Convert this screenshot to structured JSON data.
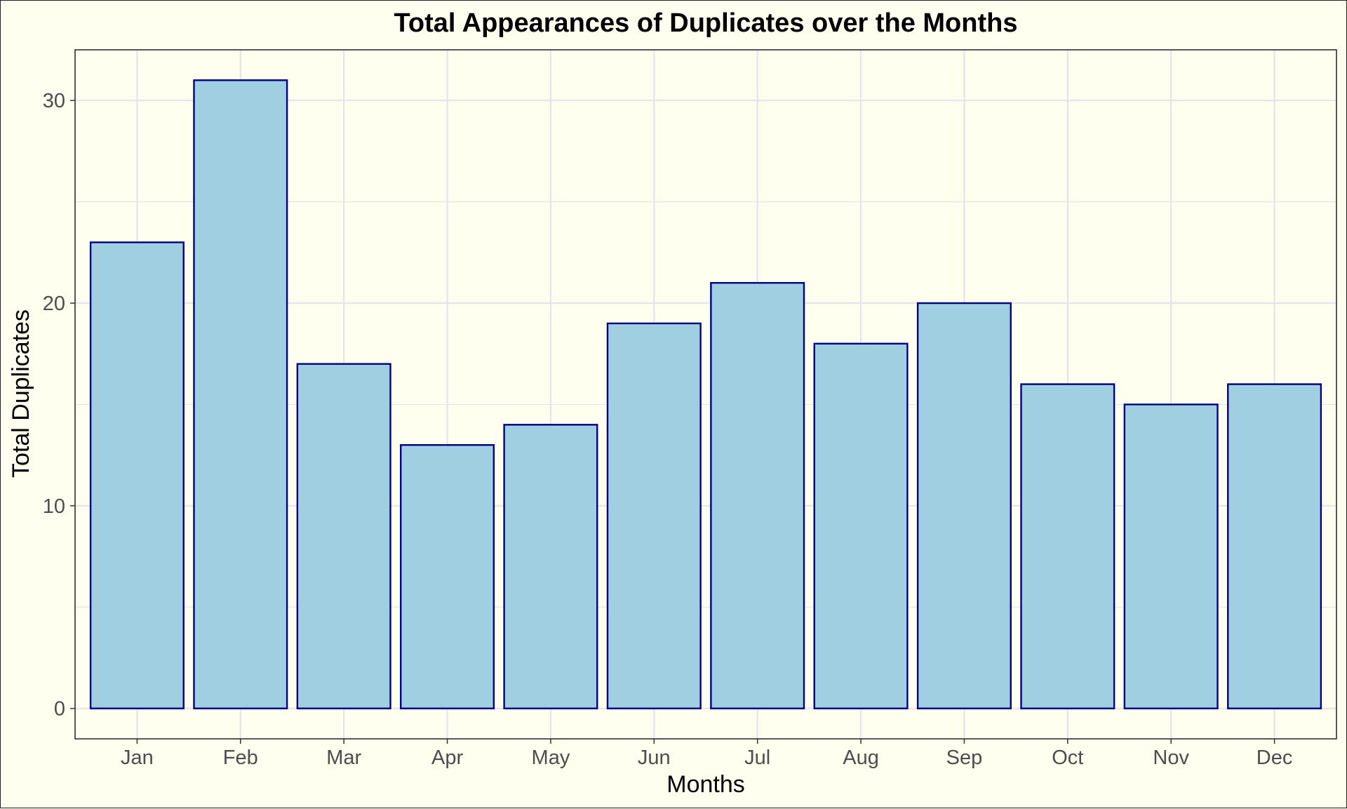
{
  "chart_data": {
    "type": "bar",
    "title": "Total Appearances of Duplicates over the Months",
    "xlabel": "Months",
    "ylabel": "Total Duplicates",
    "categories": [
      "Jan",
      "Feb",
      "Mar",
      "Apr",
      "May",
      "Jun",
      "Jul",
      "Aug",
      "Sep",
      "Oct",
      "Nov",
      "Dec"
    ],
    "values": [
      23,
      31,
      17,
      13,
      14,
      19,
      21,
      18,
      20,
      16,
      15,
      16
    ],
    "ylim": [
      -1.5,
      32.5
    ],
    "yticks": [
      0,
      10,
      20,
      30
    ],
    "ytick_labels": [
      "0",
      "10",
      "20",
      "30"
    ],
    "grid": true,
    "legend": "none",
    "colors": {
      "background": "#fffff0",
      "bar_fill": "#a0cfe1",
      "bar_stroke": "#000080",
      "grid": "#e4e4ea",
      "panel_border": "#222222"
    }
  }
}
